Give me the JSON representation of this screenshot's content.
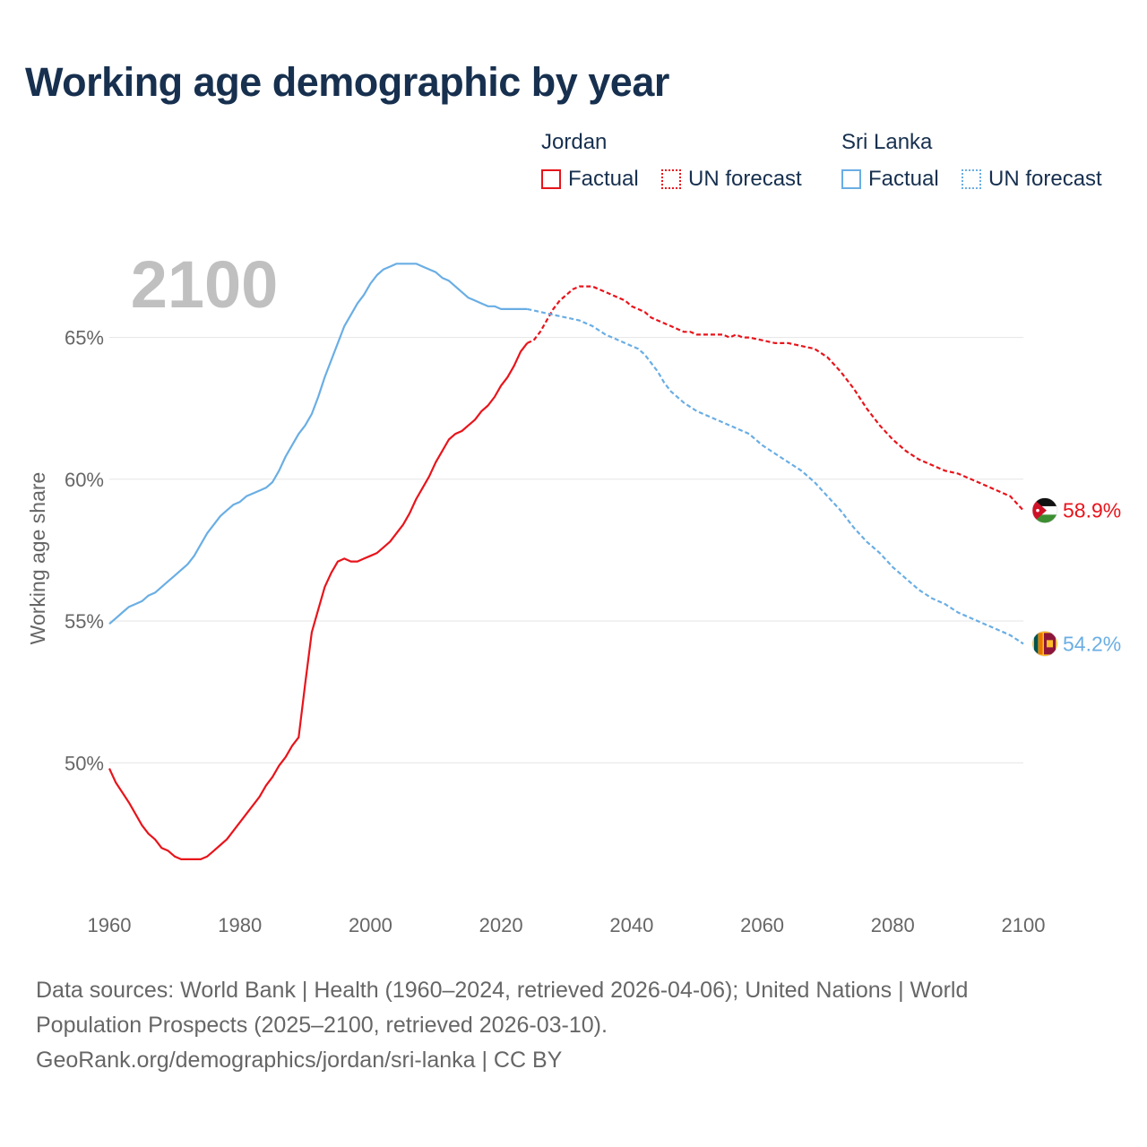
{
  "title": "Working age demographic by year",
  "legend": {
    "groups": [
      {
        "country": "Jordan",
        "factual_label": "Factual",
        "forecast_label": "UN forecast",
        "color": "#e8141b"
      },
      {
        "country": "Sri Lanka",
        "factual_label": "Factual",
        "forecast_label": "UN forecast",
        "color": "#6aaee4"
      }
    ]
  },
  "footer": {
    "line1": "Data sources: World Bank | Health (1960–2024, retrieved 2026-04-06); United Nations | World",
    "line2": "Population Prospects (2025–2100, retrieved 2026-03-10).",
    "line3": "GeoRank.org/demographics/jordan/sri-lanka | CC BY"
  },
  "chart_data": {
    "type": "line",
    "title": "Working age demographic by year",
    "year_watermark": "2100",
    "xlabel": "",
    "ylabel": "Working age share",
    "xlim": [
      1960,
      2100
    ],
    "ylim": [
      45.3,
      69
    ],
    "x_ticks": [
      1960,
      1980,
      2000,
      2020,
      2040,
      2060,
      2080,
      2100
    ],
    "y_ticks": [
      50,
      55,
      60,
      65
    ],
    "y_tick_labels": [
      "50%",
      "55%",
      "60%",
      "65%"
    ],
    "factual_end_year": 2024,
    "series": [
      {
        "name": "Jordan",
        "color": "#e8141b",
        "end_label": "58.9%",
        "points": [
          [
            1960,
            49.8
          ],
          [
            1961,
            49.3
          ],
          [
            1963,
            48.6
          ],
          [
            1965,
            47.8
          ],
          [
            1966,
            47.5
          ],
          [
            1967,
            47.3
          ],
          [
            1968,
            47.0
          ],
          [
            1969,
            46.9
          ],
          [
            1970,
            46.7
          ],
          [
            1971,
            46.6
          ],
          [
            1972,
            46.6
          ],
          [
            1973,
            46.6
          ],
          [
            1974,
            46.6
          ],
          [
            1975,
            46.7
          ],
          [
            1976,
            46.9
          ],
          [
            1977,
            47.1
          ],
          [
            1978,
            47.3
          ],
          [
            1979,
            47.6
          ],
          [
            1980,
            47.9
          ],
          [
            1981,
            48.2
          ],
          [
            1982,
            48.5
          ],
          [
            1983,
            48.8
          ],
          [
            1984,
            49.2
          ],
          [
            1985,
            49.5
          ],
          [
            1986,
            49.9
          ],
          [
            1987,
            50.2
          ],
          [
            1988,
            50.6
          ],
          [
            1989,
            50.9
          ],
          [
            1990,
            52.8
          ],
          [
            1991,
            54.6
          ],
          [
            1992,
            55.4
          ],
          [
            1993,
            56.2
          ],
          [
            1994,
            56.7
          ],
          [
            1995,
            57.1
          ],
          [
            1996,
            57.2
          ],
          [
            1997,
            57.1
          ],
          [
            1998,
            57.1
          ],
          [
            1999,
            57.2
          ],
          [
            2000,
            57.3
          ],
          [
            2001,
            57.4
          ],
          [
            2002,
            57.6
          ],
          [
            2003,
            57.8
          ],
          [
            2004,
            58.1
          ],
          [
            2005,
            58.4
          ],
          [
            2006,
            58.8
          ],
          [
            2007,
            59.3
          ],
          [
            2008,
            59.7
          ],
          [
            2009,
            60.1
          ],
          [
            2010,
            60.6
          ],
          [
            2011,
            61.0
          ],
          [
            2012,
            61.4
          ],
          [
            2013,
            61.6
          ],
          [
            2014,
            61.7
          ],
          [
            2015,
            61.9
          ],
          [
            2016,
            62.1
          ],
          [
            2017,
            62.4
          ],
          [
            2018,
            62.6
          ],
          [
            2019,
            62.9
          ],
          [
            2020,
            63.3
          ],
          [
            2021,
            63.6
          ],
          [
            2022,
            64.0
          ],
          [
            2023,
            64.5
          ],
          [
            2024,
            64.8
          ],
          [
            2025,
            64.9
          ],
          [
            2026,
            65.2
          ],
          [
            2027,
            65.6
          ],
          [
            2028,
            66.0
          ],
          [
            2029,
            66.3
          ],
          [
            2030,
            66.5
          ],
          [
            2031,
            66.7
          ],
          [
            2032,
            66.8
          ],
          [
            2033,
            66.8
          ],
          [
            2034,
            66.8
          ],
          [
            2035,
            66.7
          ],
          [
            2036,
            66.6
          ],
          [
            2037,
            66.5
          ],
          [
            2038,
            66.4
          ],
          [
            2039,
            66.3
          ],
          [
            2040,
            66.1
          ],
          [
            2041,
            66.0
          ],
          [
            2042,
            65.9
          ],
          [
            2043,
            65.7
          ],
          [
            2044,
            65.6
          ],
          [
            2045,
            65.5
          ],
          [
            2046,
            65.4
          ],
          [
            2047,
            65.3
          ],
          [
            2048,
            65.2
          ],
          [
            2049,
            65.2
          ],
          [
            2050,
            65.1
          ],
          [
            2052,
            65.1
          ],
          [
            2054,
            65.1
          ],
          [
            2055,
            65.0
          ],
          [
            2056,
            65.1
          ],
          [
            2057,
            65.0
          ],
          [
            2058,
            65.0
          ],
          [
            2060,
            64.9
          ],
          [
            2062,
            64.8
          ],
          [
            2064,
            64.8
          ],
          [
            2066,
            64.7
          ],
          [
            2068,
            64.6
          ],
          [
            2070,
            64.3
          ],
          [
            2072,
            63.8
          ],
          [
            2074,
            63.2
          ],
          [
            2076,
            62.5
          ],
          [
            2078,
            61.9
          ],
          [
            2080,
            61.4
          ],
          [
            2082,
            61.0
          ],
          [
            2084,
            60.7
          ],
          [
            2086,
            60.5
          ],
          [
            2088,
            60.3
          ],
          [
            2090,
            60.2
          ],
          [
            2092,
            60.0
          ],
          [
            2094,
            59.8
          ],
          [
            2096,
            59.6
          ],
          [
            2098,
            59.4
          ],
          [
            2100,
            58.9
          ]
        ]
      },
      {
        "name": "Sri Lanka",
        "color": "#6aaee4",
        "end_label": "54.2%",
        "points": [
          [
            1960,
            54.9
          ],
          [
            1961,
            55.1
          ],
          [
            1962,
            55.3
          ],
          [
            1963,
            55.5
          ],
          [
            1964,
            55.6
          ],
          [
            1965,
            55.7
          ],
          [
            1966,
            55.9
          ],
          [
            1967,
            56.0
          ],
          [
            1968,
            56.2
          ],
          [
            1969,
            56.4
          ],
          [
            1970,
            56.6
          ],
          [
            1971,
            56.8
          ],
          [
            1972,
            57.0
          ],
          [
            1973,
            57.3
          ],
          [
            1974,
            57.7
          ],
          [
            1975,
            58.1
          ],
          [
            1976,
            58.4
          ],
          [
            1977,
            58.7
          ],
          [
            1978,
            58.9
          ],
          [
            1979,
            59.1
          ],
          [
            1980,
            59.2
          ],
          [
            1981,
            59.4
          ],
          [
            1982,
            59.5
          ],
          [
            1983,
            59.6
          ],
          [
            1984,
            59.7
          ],
          [
            1985,
            59.9
          ],
          [
            1986,
            60.3
          ],
          [
            1987,
            60.8
          ],
          [
            1988,
            61.2
          ],
          [
            1989,
            61.6
          ],
          [
            1990,
            61.9
          ],
          [
            1991,
            62.3
          ],
          [
            1992,
            62.9
          ],
          [
            1993,
            63.6
          ],
          [
            1994,
            64.2
          ],
          [
            1995,
            64.8
          ],
          [
            1996,
            65.4
          ],
          [
            1997,
            65.8
          ],
          [
            1998,
            66.2
          ],
          [
            1999,
            66.5
          ],
          [
            2000,
            66.9
          ],
          [
            2001,
            67.2
          ],
          [
            2002,
            67.4
          ],
          [
            2003,
            67.5
          ],
          [
            2004,
            67.6
          ],
          [
            2005,
            67.6
          ],
          [
            2006,
            67.6
          ],
          [
            2007,
            67.6
          ],
          [
            2008,
            67.5
          ],
          [
            2009,
            67.4
          ],
          [
            2010,
            67.3
          ],
          [
            2011,
            67.1
          ],
          [
            2012,
            67.0
          ],
          [
            2013,
            66.8
          ],
          [
            2014,
            66.6
          ],
          [
            2015,
            66.4
          ],
          [
            2016,
            66.3
          ],
          [
            2017,
            66.2
          ],
          [
            2018,
            66.1
          ],
          [
            2019,
            66.1
          ],
          [
            2020,
            66.0
          ],
          [
            2022,
            66.0
          ],
          [
            2024,
            66.0
          ],
          [
            2026,
            65.9
          ],
          [
            2028,
            65.8
          ],
          [
            2030,
            65.7
          ],
          [
            2032,
            65.6
          ],
          [
            2034,
            65.4
          ],
          [
            2036,
            65.1
          ],
          [
            2038,
            64.9
          ],
          [
            2040,
            64.7
          ],
          [
            2041,
            64.6
          ],
          [
            2042,
            64.4
          ],
          [
            2043,
            64.1
          ],
          [
            2044,
            63.8
          ],
          [
            2045,
            63.4
          ],
          [
            2046,
            63.1
          ],
          [
            2048,
            62.7
          ],
          [
            2050,
            62.4
          ],
          [
            2052,
            62.2
          ],
          [
            2054,
            62.0
          ],
          [
            2056,
            61.8
          ],
          [
            2058,
            61.6
          ],
          [
            2060,
            61.2
          ],
          [
            2062,
            60.9
          ],
          [
            2064,
            60.6
          ],
          [
            2066,
            60.3
          ],
          [
            2068,
            59.9
          ],
          [
            2070,
            59.4
          ],
          [
            2072,
            58.9
          ],
          [
            2074,
            58.3
          ],
          [
            2076,
            57.8
          ],
          [
            2078,
            57.4
          ],
          [
            2080,
            56.9
          ],
          [
            2082,
            56.5
          ],
          [
            2084,
            56.1
          ],
          [
            2086,
            55.8
          ],
          [
            2088,
            55.6
          ],
          [
            2090,
            55.3
          ],
          [
            2092,
            55.1
          ],
          [
            2094,
            54.9
          ],
          [
            2096,
            54.7
          ],
          [
            2098,
            54.5
          ],
          [
            2100,
            54.2
          ]
        ]
      }
    ]
  }
}
